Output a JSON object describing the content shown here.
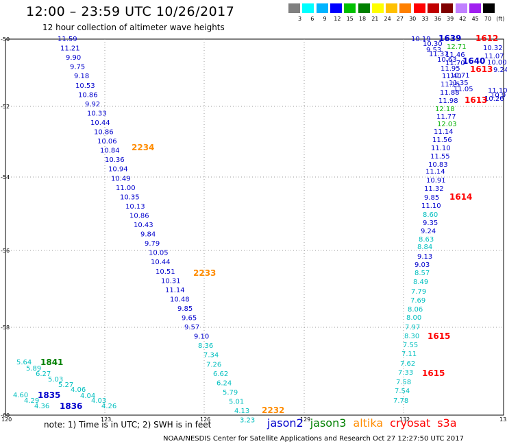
{
  "title": "12:00 – 23:59 UTC 10/26/2017",
  "subtitle": "12 hour collection of altimeter wave heights",
  "legend": {
    "colors": [
      "#808080",
      "#00ffff",
      "#00b4ff",
      "#0000ff",
      "#00c000",
      "#008000",
      "#ffff00",
      "#ffc000",
      "#ff8000",
      "#ff0000",
      "#c00000",
      "#800000",
      "#c080ff",
      "#a020f0",
      "#000000"
    ],
    "labels": [
      "3",
      "6",
      "9",
      "12",
      "15",
      "18",
      "21",
      "24",
      "27",
      "30",
      "33",
      "36",
      "39",
      "42",
      "45",
      "70",
      "(ft)"
    ]
  },
  "axes": {
    "lat_labels": [
      "-50",
      "-52",
      "-54",
      "-56",
      "-58",
      "-60"
    ],
    "lon_labels": [
      "120",
      "123",
      "126",
      "129",
      "132",
      "135"
    ]
  },
  "colors": {
    "jason2": "#0000cc",
    "jason3": "#008000",
    "altika": "#ff8c00",
    "cryosat": "#ff0000",
    "s3a": "#ff0000",
    "high": "#0000cc",
    "low": "#00bfbf",
    "mid": "#00b000"
  },
  "track1": [
    {
      "v": "11.59",
      "c": "high"
    },
    {
      "v": "11.21",
      "c": "high"
    },
    {
      "v": "9.90",
      "c": "high"
    },
    {
      "v": "9.75",
      "c": "high"
    },
    {
      "v": "9.18",
      "c": "high"
    },
    {
      "v": "10.53",
      "c": "high"
    },
    {
      "v": "10.86",
      "c": "high"
    },
    {
      "v": "9.92",
      "c": "high"
    },
    {
      "v": "10.33",
      "c": "high"
    },
    {
      "v": "10.44",
      "c": "high"
    },
    {
      "v": "10.86",
      "c": "high"
    },
    {
      "v": "10.06",
      "c": "high"
    },
    {
      "v": "10.84",
      "c": "high"
    },
    {
      "v": "10.36",
      "c": "high"
    },
    {
      "v": "10.94",
      "c": "high"
    },
    {
      "v": "10.49",
      "c": "high"
    },
    {
      "v": "11.00",
      "c": "high"
    },
    {
      "v": "10.35",
      "c": "high"
    },
    {
      "v": "10.13",
      "c": "high"
    },
    {
      "v": "10.86",
      "c": "high"
    },
    {
      "v": "10.43",
      "c": "high"
    },
    {
      "v": "9.84",
      "c": "high"
    },
    {
      "v": "9.79",
      "c": "high"
    },
    {
      "v": "10.05",
      "c": "high"
    },
    {
      "v": "10.44",
      "c": "high"
    },
    {
      "v": "10.51",
      "c": "high"
    },
    {
      "v": "10.31",
      "c": "high"
    },
    {
      "v": "11.14",
      "c": "high"
    },
    {
      "v": "10.48",
      "c": "high"
    },
    {
      "v": "9.85",
      "c": "high"
    },
    {
      "v": "9.65",
      "c": "high"
    },
    {
      "v": "9.57",
      "c": "high"
    },
    {
      "v": "9.10",
      "c": "high"
    },
    {
      "v": "8.36",
      "c": "low"
    },
    {
      "v": "7.34",
      "c": "low"
    },
    {
      "v": "7.26",
      "c": "low"
    },
    {
      "v": "6.62",
      "c": "low"
    },
    {
      "v": "6.24",
      "c": "low"
    },
    {
      "v": "5.79",
      "c": "low"
    },
    {
      "v": "5.01",
      "c": "low"
    },
    {
      "v": "4.13",
      "c": "low"
    },
    {
      "v": "3.23",
      "c": "low"
    }
  ],
  "track1_times": [
    {
      "t": "2234",
      "c": "altika"
    },
    {
      "t": "2233",
      "c": "altika"
    },
    {
      "t": "2232",
      "c": "altika"
    }
  ],
  "track2": [
    {
      "v": "5.64",
      "c": "low"
    },
    {
      "v": "5.89",
      "c": "low"
    },
    {
      "v": "6.27",
      "c": "low"
    },
    {
      "v": "5.03",
      "c": "low"
    },
    {
      "v": "5.27",
      "c": "low"
    },
    {
      "v": "4.06",
      "c": "low"
    },
    {
      "v": "4.04",
      "c": "low"
    },
    {
      "v": "4.03",
      "c": "low"
    },
    {
      "v": "4.26",
      "c": "low"
    },
    {
      "v": "4.60",
      "c": "low"
    },
    {
      "v": "4.29",
      "c": "low"
    },
    {
      "v": "4.36",
      "c": "low"
    }
  ],
  "track2_times": [
    {
      "t": "1841",
      "c": "jason3"
    },
    {
      "t": "1835",
      "c": "jason2"
    },
    {
      "t": "1836",
      "c": "jason2"
    }
  ],
  "track3": [
    {
      "v": "10.19",
      "c": "high"
    },
    {
      "v": "10.30",
      "c": "high"
    },
    {
      "v": "9.53",
      "c": "high"
    },
    {
      "v": "11.37",
      "c": "high"
    },
    {
      "v": "11.46",
      "c": "high"
    },
    {
      "v": "10.63",
      "c": "high"
    },
    {
      "v": "11.70",
      "c": "high"
    },
    {
      "v": "11.95",
      "c": "high"
    },
    {
      "v": "11.40",
      "c": "high"
    },
    {
      "v": "10.71",
      "c": "high"
    },
    {
      "v": "11.15",
      "c": "high"
    },
    {
      "v": "11.35",
      "c": "high"
    },
    {
      "v": "11.88",
      "c": "high"
    },
    {
      "v": "11.05",
      "c": "high"
    },
    {
      "v": "11.98",
      "c": "high"
    },
    {
      "v": "12.18",
      "c": "mid"
    },
    {
      "v": "11.77",
      "c": "high"
    },
    {
      "v": "12.03",
      "c": "mid"
    },
    {
      "v": "11.14",
      "c": "high"
    },
    {
      "v": "11.56",
      "c": "high"
    },
    {
      "v": "11.10",
      "c": "high"
    },
    {
      "v": "11.55",
      "c": "high"
    },
    {
      "v": "10.83",
      "c": "high"
    },
    {
      "v": "10.91",
      "c": "high"
    },
    {
      "v": "11.14",
      "c": "high"
    },
    {
      "v": "11.32",
      "c": "high"
    },
    {
      "v": "9.85",
      "c": "high"
    },
    {
      "v": "11.10",
      "c": "high"
    },
    {
      "v": "8.60",
      "c": "low"
    },
    {
      "v": "9.35",
      "c": "high"
    },
    {
      "v": "9.24",
      "c": "high"
    },
    {
      "v": "8.63",
      "c": "low"
    },
    {
      "v": "8.84",
      "c": "low"
    },
    {
      "v": "9.13",
      "c": "high"
    },
    {
      "v": "9.03",
      "c": "high"
    },
    {
      "v": "8.57",
      "c": "low"
    },
    {
      "v": "8.49",
      "c": "low"
    },
    {
      "v": "7.79",
      "c": "low"
    },
    {
      "v": "7.69",
      "c": "low"
    },
    {
      "v": "8.06",
      "c": "low"
    },
    {
      "v": "8.00",
      "c": "low"
    },
    {
      "v": "7.97",
      "c": "low"
    },
    {
      "v": "8.30",
      "c": "low"
    },
    {
      "v": "7.55",
      "c": "low"
    },
    {
      "v": "7.11",
      "c": "low"
    },
    {
      "v": "7.62",
      "c": "low"
    },
    {
      "v": "7.33",
      "c": "low"
    },
    {
      "v": "7.58",
      "c": "low"
    },
    {
      "v": "7.54",
      "c": "low"
    },
    {
      "v": "7.78",
      "c": "low"
    }
  ],
  "track4": [
    {
      "v": "12.71",
      "c": "mid"
    },
    {
      "v": "10.32",
      "c": "high"
    },
    {
      "v": "11.07",
      "c": "high"
    },
    {
      "v": "10.00",
      "c": "high"
    },
    {
      "v": "9.24",
      "c": "high"
    },
    {
      "v": "11.10",
      "c": "high"
    },
    {
      "v": "10.26",
      "c": "high"
    },
    {
      "v": "10.9",
      "c": "high"
    }
  ],
  "track3_times": [
    {
      "t": "1639",
      "c": "jason2"
    },
    {
      "t": "1640",
      "c": "jason2"
    },
    {
      "t": "1613",
      "c": "cryosat"
    },
    {
      "t": "1613",
      "c": "cryosat"
    },
    {
      "t": "1614",
      "c": "cryosat"
    },
    {
      "t": "1615",
      "c": "cryosat"
    },
    {
      "t": "1615",
      "c": "cryosat"
    },
    {
      "t": "1612",
      "c": "cryosat"
    }
  ],
  "note": "note: 1) Time is in UTC; 2) SWH is in feet",
  "satellites": [
    {
      "name": "jason2",
      "color": "#0000cc"
    },
    {
      "name": "jason3",
      "color": "#008000"
    },
    {
      "name": "altika",
      "color": "#ff8c00"
    },
    {
      "name": "cryosat",
      "color": "#ff0000"
    },
    {
      "name": "s3a",
      "color": "#ff0000"
    }
  ],
  "footer": "NOAA/NESDIS Center for Satellite Applications and Research   Oct 27 12:27:50 UTC 2017"
}
